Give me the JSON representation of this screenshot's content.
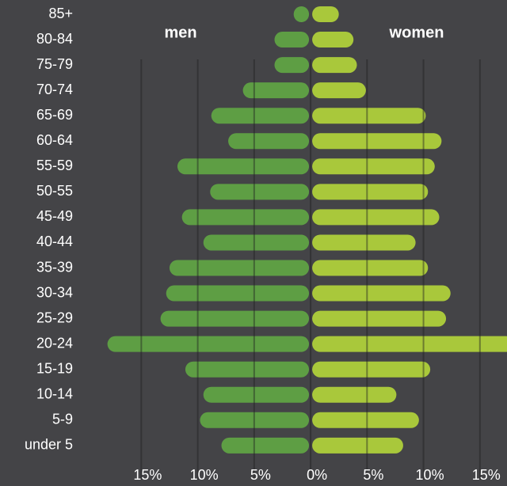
{
  "chart_data": {
    "type": "pyramid",
    "categories": [
      "85+",
      "80-84",
      "75-79",
      "70-74",
      "65-69",
      "60-64",
      "55-59",
      "50-55",
      "45-49",
      "40-44",
      "35-39",
      "30-34",
      "25-29",
      "20-24",
      "15-19",
      "10-14",
      "5-9",
      "under 5"
    ],
    "series": [
      {
        "name": "men",
        "color": "#5e9e44",
        "values": [
          1.5,
          3.2,
          3.2,
          6.0,
          8.8,
          7.3,
          11.8,
          8.9,
          11.4,
          9.5,
          12.5,
          12.8,
          13.3,
          18.0,
          11.1,
          9.5,
          9.8,
          7.9
        ]
      },
      {
        "name": "women",
        "color": "#a9c83b",
        "values": [
          2.5,
          3.8,
          4.1,
          4.9,
          10.2,
          11.6,
          11.0,
          10.4,
          11.4,
          9.3,
          10.4,
          12.4,
          12.0,
          18.0,
          10.6,
          7.6,
          9.6,
          8.2
        ]
      }
    ],
    "xlim": [
      -20.5,
      17.4
    ],
    "xticks": [
      {
        "value": -15,
        "label": "15%"
      },
      {
        "value": -10,
        "label": "10%"
      },
      {
        "value": -5,
        "label": "5%"
      },
      {
        "value": 0,
        "label": "0%"
      },
      {
        "value": 5,
        "label": "5%"
      },
      {
        "value": 10,
        "label": "10%"
      },
      {
        "value": 15,
        "label": "15%"
      }
    ],
    "grid": true
  }
}
